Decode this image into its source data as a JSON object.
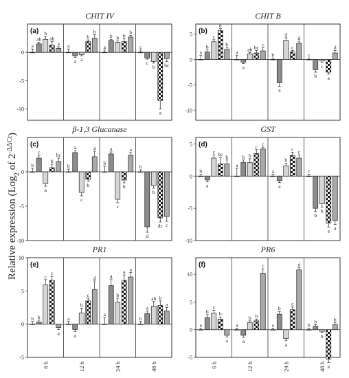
{
  "ylabel_main": "Relative expression (Log",
  "ylabel_sub": "2",
  "ylabel_mid": " of 2",
  "ylabel_sup": "-ΔΔCt",
  "ylabel_end": ")",
  "chart_data": [
    {
      "type": "bar",
      "label": "(a)",
      "title": "CHIT IV",
      "categories": [
        "6 h",
        "12 h",
        "24 h",
        "48 h"
      ],
      "ylim": [
        -12,
        5
      ],
      "yticks": [
        -10,
        -5,
        0
      ],
      "series": [
        {
          "values": [
            0,
            0,
            0,
            0
          ],
          "errors": [
            0.6,
            0.6,
            0.4,
            0.4
          ],
          "sig": [
            "a",
            "a",
            "a",
            "c"
          ]
        },
        {
          "values": [
            1.5,
            -0.6,
            2.1,
            -1.0
          ],
          "errors": [
            0.3,
            0.3,
            0.2,
            0.2
          ],
          "sig": [
            "ab",
            "a",
            "b",
            "c"
          ]
        },
        {
          "values": [
            2.3,
            -0.4,
            1.8,
            -1.6
          ],
          "errors": [
            0.5,
            0.2,
            0.2,
            0.3
          ],
          "sig": [
            "b",
            "a",
            "b",
            "b"
          ]
        },
        {
          "values": [
            1.3,
            1.9,
            1.9,
            -8.5
          ],
          "errors": [
            0.6,
            0.3,
            0.5,
            1.5
          ],
          "sig": [
            "ab",
            "b",
            "b",
            "a"
          ]
        },
        {
          "values": [
            0.7,
            2.5,
            2.7,
            -1.1
          ],
          "errors": [
            0.3,
            0.6,
            0.3,
            0.5
          ],
          "sig": [
            "a",
            "b",
            "b",
            "bc"
          ]
        }
      ]
    },
    {
      "type": "bar",
      "label": "(b)",
      "title": "CHIT B",
      "categories": [
        "6 h",
        "12 h",
        "24 h",
        "48 h"
      ],
      "ylim": [
        -12,
        7
      ],
      "yticks": [
        -10,
        -5,
        0,
        5
      ],
      "series": [
        {
          "values": [
            0,
            0,
            0,
            0
          ],
          "errors": [
            0.8,
            0.8,
            0.3,
            0.3
          ],
          "sig": [
            "a",
            "a",
            "b",
            "c"
          ]
        },
        {
          "values": [
            1.5,
            -0.5,
            -4.6,
            -2.0
          ],
          "errors": [
            0.4,
            0.3,
            0.7,
            0.5
          ],
          "sig": [
            "b",
            "a",
            "a",
            "b"
          ]
        },
        {
          "values": [
            3.5,
            1.1,
            3.8,
            -0.3
          ],
          "errors": [
            0.4,
            0.3,
            0.5,
            0.3
          ],
          "sig": [
            "c",
            "ab",
            "d",
            "c"
          ]
        },
        {
          "values": [
            5.7,
            1.3,
            1.5,
            -2.5
          ],
          "errors": [
            0.4,
            0.5,
            0.3,
            0.4
          ],
          "sig": [
            "d",
            "bc",
            "c",
            "a"
          ]
        },
        {
          "values": [
            2.0,
            1.7,
            3.2,
            1.3
          ],
          "errors": [
            0.4,
            0.6,
            0.4,
            0.5
          ],
          "sig": [
            "b",
            "c",
            "d",
            "d"
          ]
        }
      ]
    },
    {
      "type": "bar",
      "label": "(c)",
      "title": "β-1,3 Glucanase",
      "categories": [
        "6 h",
        "12 h",
        "24 h",
        "48 h"
      ],
      "ylim": [
        -10,
        5
      ],
      "yticks": [
        -10,
        -5,
        0
      ],
      "series": [
        {
          "values": [
            0,
            0,
            0,
            0
          ],
          "errors": [
            0.5,
            0.4,
            0.8,
            0.3
          ],
          "sig": [
            "b",
            "b",
            "b",
            "b"
          ]
        },
        {
          "values": [
            2.0,
            2.8,
            2.6,
            -8.0
          ],
          "errors": [
            0.4,
            0.3,
            0.3,
            0.8
          ],
          "sig": [
            "c",
            "a",
            "a",
            "d"
          ]
        },
        {
          "values": [
            -1.7,
            -3.0,
            -4.0,
            -2.0
          ],
          "errors": [
            0.4,
            0.5,
            0.5,
            0.4
          ],
          "sig": [
            "a",
            "c",
            "c",
            "b"
          ]
        },
        {
          "values": [
            0.6,
            -1.1,
            -1.2,
            -6.7
          ],
          "errors": [
            0.5,
            0.3,
            0.4,
            0.6
          ],
          "sig": [
            "b",
            "b",
            "b",
            "dc"
          ]
        },
        {
          "values": [
            1.5,
            2.2,
            2.4,
            -6.5
          ],
          "errors": [
            0.5,
            0.8,
            0.4,
            0.7
          ],
          "sig": [
            "bc",
            "a",
            "a",
            "c"
          ]
        }
      ]
    },
    {
      "type": "bar",
      "label": "(d)",
      "title": "GST",
      "categories": [
        "6 h",
        "12 h",
        "24 h",
        "48 h"
      ],
      "ylim": [
        -10,
        6
      ],
      "yticks": [
        -10,
        -5,
        0,
        5
      ],
      "series": [
        {
          "values": [
            0,
            0,
            0,
            0
          ],
          "errors": [
            0.3,
            1.2,
            0.3,
            0.3
          ],
          "sig": [
            "b",
            "a",
            "a",
            "c"
          ]
        },
        {
          "values": [
            -0.6,
            2.1,
            -0.7,
            -5.0
          ],
          "errors": [
            0.3,
            0.4,
            0.3,
            0.5
          ],
          "sig": [
            "a",
            "b",
            "a",
            "b"
          ]
        },
        {
          "values": [
            2.8,
            2.1,
            1.6,
            -4.3
          ],
          "errors": [
            0.5,
            0.6,
            0.4,
            0.5
          ],
          "sig": [
            "c",
            "b",
            "b",
            "b"
          ]
        },
        {
          "values": [
            1.9,
            3.5,
            3.2,
            -7.3
          ],
          "errors": [
            1.0,
            0.6,
            0.5,
            0.6
          ],
          "sig": [
            "bc",
            "c",
            "c",
            "a"
          ]
        },
        {
          "values": [
            1.9,
            4.2,
            2.8,
            -6.9
          ],
          "errors": [
            0.6,
            0.3,
            0.5,
            0.6
          ],
          "sig": [
            "b",
            "c",
            "c",
            "a"
          ]
        }
      ]
    },
    {
      "type": "bar",
      "label": "(e)",
      "title": "PR1",
      "categories": [
        "6 h",
        "12 h",
        "24 h",
        "48 h"
      ],
      "ylim": [
        -5,
        10
      ],
      "yticks": [
        -5,
        0,
        5,
        10
      ],
      "series": [
        {
          "values": [
            0,
            0,
            0,
            0
          ],
          "errors": [
            0.4,
            0.4,
            1.0,
            0.4
          ],
          "sig": [
            "b",
            "a",
            "a",
            "b"
          ]
        },
        {
          "values": [
            0.3,
            -0.8,
            5.8,
            1.6
          ],
          "errors": [
            0.3,
            0.3,
            1.0,
            0.4
          ],
          "sig": [
            "b",
            "a",
            "a",
            "a"
          ]
        },
        {
          "values": [
            5.9,
            1.7,
            3.3,
            2.7
          ],
          "errors": [
            0.8,
            0.7,
            0.6,
            0.7
          ],
          "sig": [
            "c",
            "b",
            "b",
            "ab"
          ]
        },
        {
          "values": [
            6.6,
            3.5,
            6.6,
            2.8
          ],
          "errors": [
            0.6,
            0.4,
            0.8,
            0.7
          ],
          "sig": [
            "c",
            "c",
            "a",
            "b"
          ]
        },
        {
          "values": [
            -0.5,
            5.2,
            7.1,
            2.0
          ],
          "errors": [
            0.3,
            1.3,
            0.7,
            0.5
          ],
          "sig": [
            "a",
            "d",
            "a",
            "a"
          ]
        }
      ]
    },
    {
      "type": "bar",
      "label": "(f)",
      "title": "PR6",
      "categories": [
        "6 h",
        "12 h",
        "24 h",
        "48 h"
      ],
      "ylim": [
        -5,
        13
      ],
      "yticks": [
        -5,
        0,
        5,
        10
      ],
      "series": [
        {
          "values": [
            0,
            0,
            0,
            0
          ],
          "errors": [
            0.3,
            0.3,
            0.3,
            0.3
          ],
          "sig": [
            "a",
            "a",
            "a",
            "b"
          ]
        },
        {
          "values": [
            2.2,
            -1.0,
            2.8,
            0.6
          ],
          "errors": [
            0.5,
            0.4,
            0.5,
            0.3
          ],
          "sig": [
            "b",
            "a",
            "b",
            "b"
          ]
        },
        {
          "values": [
            3.0,
            1.3,
            -1.6,
            -0.3
          ],
          "errors": [
            0.5,
            0.3,
            0.4,
            0.2
          ],
          "sig": [
            "c",
            "b",
            "a",
            "b"
          ]
        },
        {
          "values": [
            1.9,
            1.6,
            3.6,
            -5.3
          ],
          "errors": [
            0.4,
            0.3,
            0.5,
            0.6
          ],
          "sig": [
            "b",
            "b",
            "c",
            "a"
          ]
        },
        {
          "values": [
            -1.0,
            10.2,
            10.8,
            0.9
          ],
          "errors": [
            0.3,
            0.8,
            0.4,
            0.4
          ],
          "sig": [
            "a",
            "c",
            "d",
            "b"
          ]
        }
      ]
    }
  ]
}
